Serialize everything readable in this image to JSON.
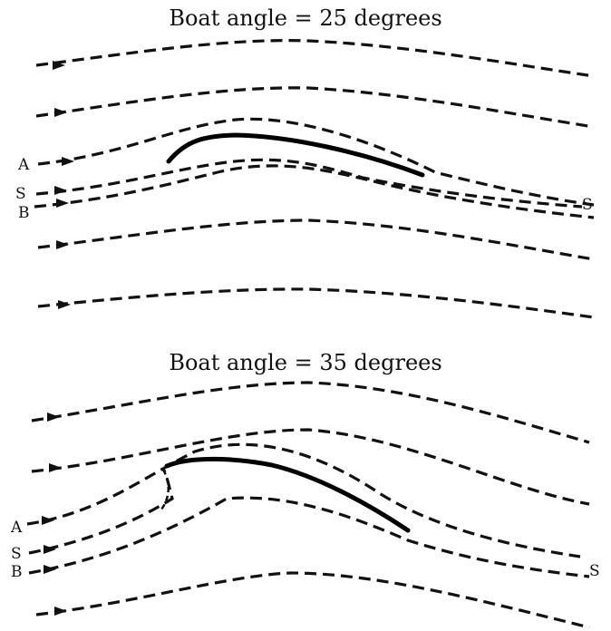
{
  "diagrams": [
    {
      "title": "Boat angle = 25 degrees",
      "labels": {
        "a": "A",
        "s_left": "S",
        "b": "B",
        "s_right": "S"
      }
    },
    {
      "title": "Boat angle = 35 degrees",
      "labels": {
        "a": "A",
        "s_left": "S",
        "b": "B",
        "s_right": "S"
      }
    }
  ]
}
